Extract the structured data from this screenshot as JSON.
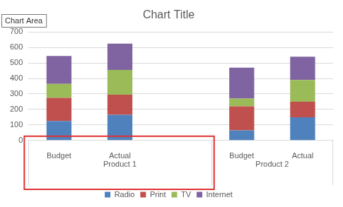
{
  "chart_data": {
    "type": "bar",
    "title": "Chart Title",
    "categories": [
      "Budget",
      "Actual",
      null,
      "Budget",
      "Actual"
    ],
    "groups": [
      "Product 1",
      "Product 1",
      "Product 1",
      "Product 2",
      "Product 2"
    ],
    "series": [
      {
        "name": "Radio",
        "color": "#4f81bd",
        "values": [
          125,
          165,
          null,
          65,
          150
        ]
      },
      {
        "name": "Print",
        "color": "#c0504d",
        "values": [
          150,
          130,
          null,
          155,
          100
        ]
      },
      {
        "name": "TV",
        "color": "#9bbb59",
        "values": [
          90,
          160,
          null,
          50,
          140
        ]
      },
      {
        "name": "Internet",
        "color": "#8064a2",
        "values": [
          180,
          170,
          null,
          200,
          150
        ]
      }
    ],
    "ylim": [
      0,
      700
    ],
    "yticks": [
      0,
      100,
      200,
      300,
      400,
      500,
      600,
      700
    ],
    "stacked": true,
    "grid": true,
    "legend": "bottom",
    "annotation": "Chart Area"
  }
}
